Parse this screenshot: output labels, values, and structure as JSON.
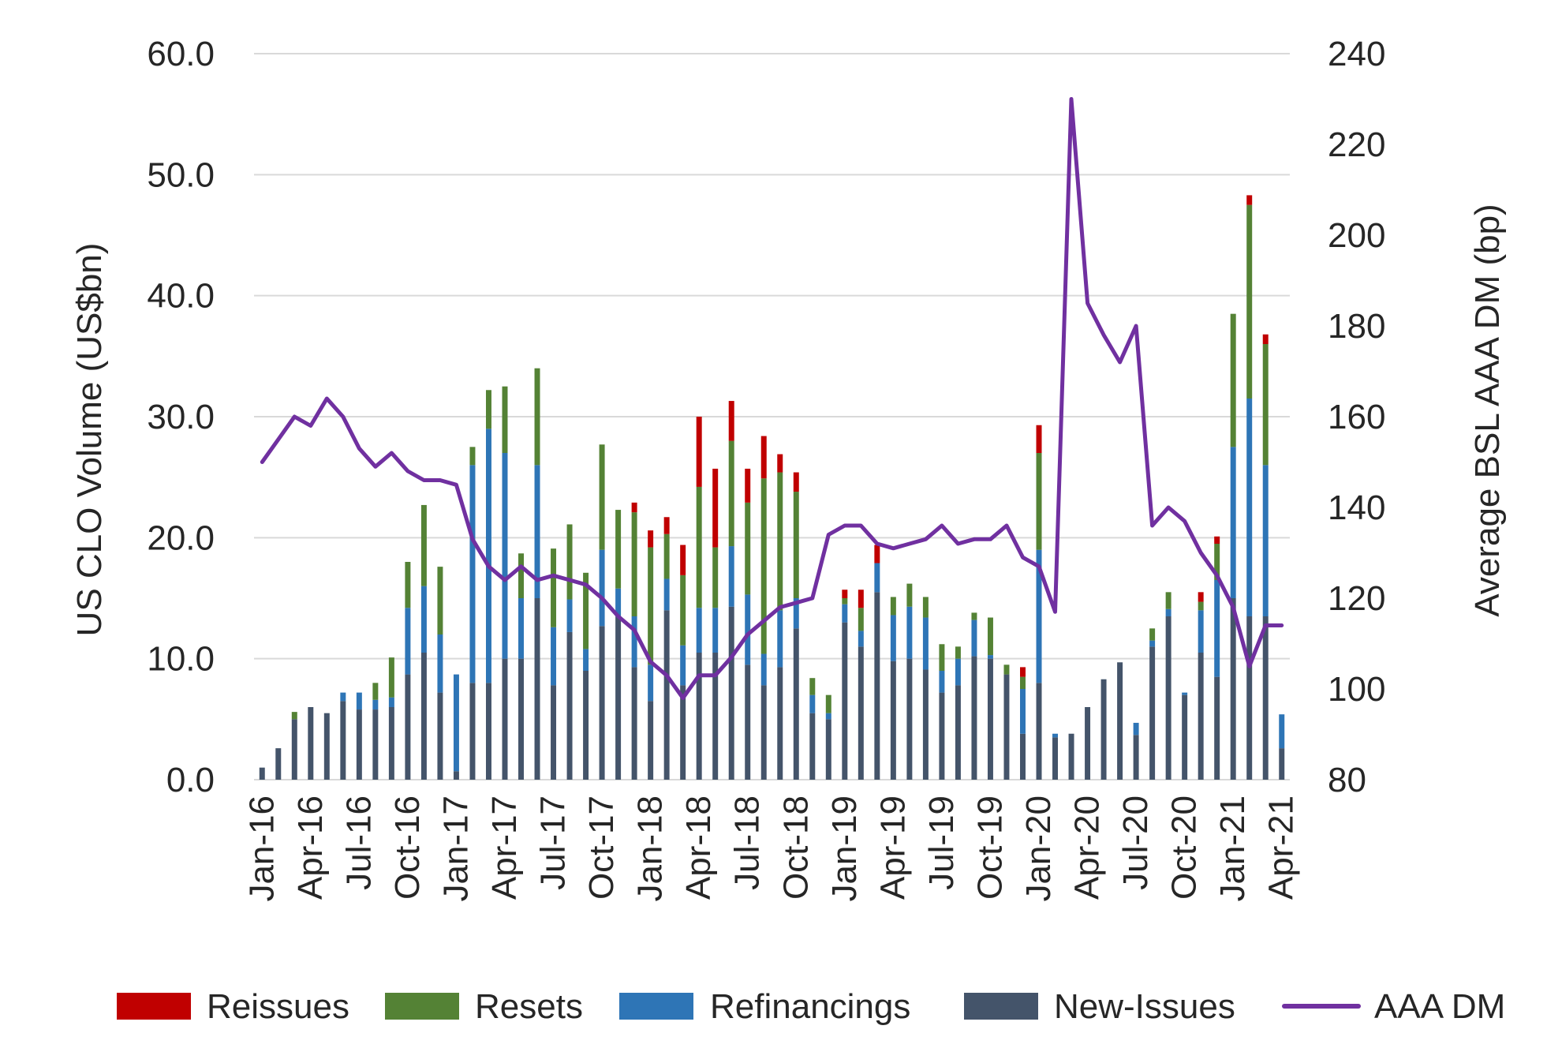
{
  "chart_data": {
    "type": "bar",
    "stacked": true,
    "y_left": {
      "label": "US CLO Volume (US$bn)",
      "min": 0,
      "max": 60,
      "step": 10,
      "ticks": [
        "0.0",
        "10.0",
        "20.0",
        "30.0",
        "40.0",
        "50.0",
        "60.0"
      ]
    },
    "y_right": {
      "label": "Average BSL AAA DM (bp)",
      "min": 80,
      "max": 240,
      "step": 20,
      "ticks": [
        "80",
        "100",
        "120",
        "140",
        "160",
        "180",
        "200",
        "220",
        "240"
      ]
    },
    "grid": true,
    "legend_position": "bottom",
    "categories": [
      "Jan-16",
      "Feb-16",
      "Mar-16",
      "Apr-16",
      "May-16",
      "Jun-16",
      "Jul-16",
      "Aug-16",
      "Sep-16",
      "Oct-16",
      "Nov-16",
      "Dec-16",
      "Jan-17",
      "Feb-17",
      "Mar-17",
      "Apr-17",
      "May-17",
      "Jun-17",
      "Jul-17",
      "Aug-17",
      "Sep-17",
      "Oct-17",
      "Nov-17",
      "Dec-17",
      "Jan-18",
      "Feb-18",
      "Mar-18",
      "Apr-18",
      "May-18",
      "Jun-18",
      "Jul-18",
      "Aug-18",
      "Sep-18",
      "Oct-18",
      "Nov-18",
      "Dec-18",
      "Jan-19",
      "Feb-19",
      "Mar-19",
      "Apr-19",
      "May-19",
      "Jun-19",
      "Jul-19",
      "Aug-19",
      "Sep-19",
      "Oct-19",
      "Nov-19",
      "Dec-19",
      "Jan-20",
      "Feb-20",
      "Mar-20",
      "Apr-20",
      "May-20",
      "Jun-20",
      "Jul-20",
      "Aug-20",
      "Sep-20",
      "Oct-20",
      "Nov-20",
      "Dec-20",
      "Jan-21",
      "Feb-21",
      "Mar-21",
      "Apr-21"
    ],
    "x_tick_labels": [
      "Jan-16",
      "Apr-16",
      "Jul-16",
      "Oct-16",
      "Jan-17",
      "Apr-17",
      "Jul-17",
      "Oct-17",
      "Jan-18",
      "Apr-18",
      "Jul-18",
      "Oct-18",
      "Jan-19",
      "Apr-19",
      "Jul-19",
      "Oct-19",
      "Jan-20",
      "Apr-20",
      "Jul-20",
      "Oct-20",
      "Jan-21",
      "Apr-21"
    ],
    "series": [
      {
        "name": "New-Issues",
        "color": "#44546a",
        "axis": "left",
        "values": [
          1.0,
          2.6,
          5.0,
          6.0,
          5.5,
          6.5,
          5.8,
          5.8,
          6.0,
          8.7,
          10.5,
          7.2,
          0.7,
          8.0,
          8.0,
          10.0,
          10.0,
          15.0,
          7.8,
          12.2,
          9.0,
          12.7,
          13.5,
          9.3,
          6.5,
          14.0,
          7.8,
          10.5,
          10.5,
          14.3,
          9.5,
          7.8,
          9.3,
          12.5,
          5.5,
          5.0,
          13.0,
          11.0,
          15.5,
          9.8,
          10.0,
          9.1,
          7.2,
          7.8,
          10.2,
          10.0,
          8.7,
          3.8,
          8.0,
          3.5,
          3.8,
          6.0,
          8.3,
          9.7,
          3.7,
          11.0,
          13.5,
          7.0,
          10.5,
          8.5,
          15.0,
          13.5,
          13.5,
          2.6
        ]
      },
      {
        "name": "Refinancings",
        "color": "#2e75b6",
        "axis": "left",
        "values": [
          0,
          0,
          0,
          0,
          0,
          0.7,
          1.4,
          0.8,
          0.8,
          5.5,
          5.5,
          4.8,
          8.0,
          18.0,
          21.0,
          17.0,
          5.0,
          11.0,
          4.8,
          2.7,
          1.8,
          6.3,
          2.3,
          4.2,
          3.0,
          2.6,
          3.3,
          3.7,
          3.7,
          5.0,
          5.8,
          2.6,
          4.7,
          2.5,
          1.5,
          0.5,
          1.5,
          1.3,
          2.4,
          3.8,
          4.3,
          4.3,
          1.8,
          2.2,
          3.0,
          0.3,
          0,
          3.7,
          11.0,
          0.3,
          0,
          0,
          0,
          0,
          1.0,
          0.5,
          0.6,
          0.2,
          3.5,
          8.0,
          12.5,
          18.0,
          12.5,
          2.8
        ]
      },
      {
        "name": "Resets",
        "color": "#548235",
        "axis": "left",
        "values": [
          0,
          0,
          0.6,
          0,
          0,
          0,
          0,
          1.4,
          3.3,
          3.8,
          6.7,
          5.6,
          0,
          1.5,
          3.2,
          5.5,
          3.7,
          8.0,
          6.5,
          6.2,
          6.3,
          8.7,
          6.5,
          8.6,
          9.7,
          3.7,
          5.8,
          10.0,
          5.0,
          8.7,
          7.6,
          14.5,
          11.4,
          8.8,
          1.4,
          1.5,
          0.5,
          1.9,
          0,
          1.5,
          1.9,
          1.7,
          2.2,
          1.0,
          0.6,
          3.1,
          0.8,
          1.0,
          8.0,
          0,
          0,
          0,
          0,
          0,
          0,
          1.0,
          1.4,
          0,
          0.7,
          3.0,
          11.0,
          16.0,
          10.0,
          0
        ]
      },
      {
        "name": "Reissues",
        "color": "#c00000",
        "axis": "left",
        "values": [
          0,
          0,
          0,
          0,
          0,
          0,
          0,
          0,
          0,
          0,
          0,
          0,
          0,
          0,
          0,
          0,
          0,
          0,
          0,
          0,
          0,
          0,
          0,
          0.8,
          1.4,
          1.4,
          2.5,
          5.8,
          6.5,
          3.3,
          2.8,
          3.5,
          1.5,
          1.6,
          0,
          0,
          0.7,
          1.5,
          1.5,
          0,
          0,
          0,
          0,
          0,
          0,
          0,
          0,
          0.8,
          2.3,
          0,
          0,
          0,
          0,
          0,
          0,
          0,
          0,
          0,
          0.8,
          0.6,
          0,
          0.8,
          0.8,
          0
        ]
      },
      {
        "name": "AAA DM",
        "color": "#7030a0",
        "axis": "right",
        "kind": "line",
        "values": [
          150,
          155,
          160,
          158,
          164,
          160,
          153,
          149,
          152,
          148,
          146,
          146,
          145,
          133,
          127,
          124,
          127,
          124,
          125,
          124,
          123,
          120,
          116,
          113,
          106,
          103,
          98,
          103,
          103,
          107,
          112,
          115,
          118,
          119,
          120,
          134,
          136,
          136,
          132,
          131,
          132,
          133,
          136,
          132,
          133,
          133,
          136,
          129,
          127,
          117,
          230,
          185,
          178,
          172,
          180,
          136,
          140,
          137,
          130,
          125,
          118,
          105,
          114,
          114
        ]
      }
    ],
    "legend": [
      "Reissues",
      "Resets",
      "Refinancings",
      "New-Issues",
      "AAA DM"
    ]
  }
}
